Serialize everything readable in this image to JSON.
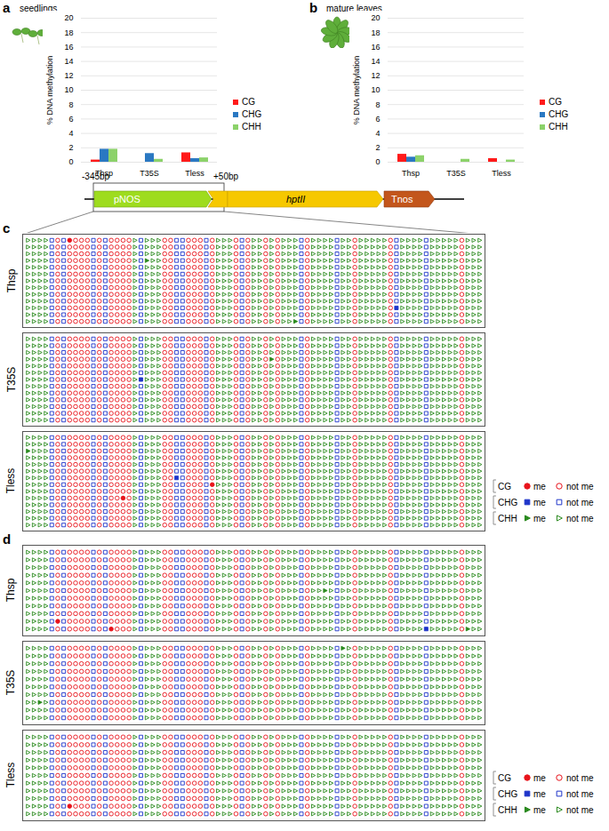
{
  "chart_data": [
    {
      "type": "bar",
      "panel": "a",
      "title": "seedlings",
      "categories": [
        "Thsp",
        "T35S",
        "Tless"
      ],
      "series": [
        {
          "name": "CG",
          "color": "#ff1a1a",
          "values": [
            0.3,
            0,
            1.3
          ]
        },
        {
          "name": "CHG",
          "color": "#2a78c2",
          "values": [
            1.8,
            1.2,
            0.5
          ]
        },
        {
          "name": "CHH",
          "color": "#8cd26a",
          "values": [
            1.8,
            0.4,
            0.6
          ]
        }
      ],
      "ylabel": "% DNA methylation",
      "ylim": [
        0,
        20
      ],
      "yticks": [
        0,
        2,
        4,
        6,
        8,
        10,
        12,
        14,
        16,
        18,
        20
      ],
      "grid": true,
      "legend": "right"
    },
    {
      "type": "bar",
      "panel": "b",
      "title": "mature leaves",
      "categories": [
        "Thsp",
        "T35S",
        "Tless"
      ],
      "series": [
        {
          "name": "CG",
          "color": "#ff1a1a",
          "values": [
            1.1,
            0,
            0.5
          ]
        },
        {
          "name": "CHG",
          "color": "#2a78c2",
          "values": [
            0.7,
            0,
            0
          ]
        },
        {
          "name": "CHH",
          "color": "#8cd26a",
          "values": [
            0.9,
            0.4,
            0.3
          ]
        }
      ],
      "ylabel": "% DNA methylation",
      "ylim": [
        0,
        20
      ],
      "yticks": [
        0,
        2,
        4,
        6,
        8,
        10,
        12,
        14,
        16,
        18,
        20
      ],
      "grid": true,
      "legend": "right"
    }
  ],
  "construct": {
    "start": "-345bp",
    "end": "+50bp",
    "elements": [
      "pNOS",
      "hptII",
      "Tnos"
    ]
  },
  "methylation": {
    "legend": {
      "contexts": [
        {
          "name": "CG",
          "color": "#e8141c",
          "marker": "circle"
        },
        {
          "name": "CHG",
          "color": "#1f35c9",
          "marker": "square"
        },
        {
          "name": "CHH",
          "color": "#2a8a1e",
          "marker": "triangle"
        }
      ],
      "methylated": "me",
      "unmethylated": "not me"
    },
    "sites": [
      "CHH",
      "CHH",
      "CHH",
      "CHH",
      "CHG",
      "CG",
      "CHG",
      "CG",
      "CG",
      "CG",
      "CG",
      "CHG",
      "CG",
      "CHG",
      "CG",
      "CG",
      "CG",
      "CG",
      "CHH",
      "CHG",
      "CHH",
      "CHH",
      "CHH",
      "CG",
      "CG",
      "CHG",
      "CHG",
      "CG",
      "CG",
      "CG",
      "CHG",
      "CG",
      "CHH",
      "CHH",
      "CHH",
      "CG",
      "CHG",
      "CG",
      "CHH",
      "CHH",
      "CG",
      "CHH",
      "CG",
      "CHH",
      "CHH",
      "CHH",
      "CHG",
      "CG",
      "CHH",
      "CHH",
      "CHH",
      "CHH",
      "CHG",
      "CHH",
      "CHH",
      "CG",
      "CHH",
      "CHH",
      "CHH",
      "CHH",
      "CHH",
      "CG",
      "CHG",
      "CHH",
      "CHH",
      "CHH",
      "CHH",
      "CHG",
      "CHH",
      "CHH",
      "CHH",
      "CHH",
      "CHH",
      "CG",
      "CHH",
      "CHH",
      "CHH"
    ],
    "panels": [
      {
        "panel": "c",
        "samples": [
          {
            "name": "Thsp",
            "reads": 13,
            "methylated": [
              [
                0,
                7
              ],
              [
                3,
                20
              ],
              [
                10,
                62
              ],
              [
                12,
                45
              ]
            ]
          },
          {
            "name": "T35S",
            "reads": 13,
            "methylated": [
              [
                6,
                19
              ],
              [
                3,
                41
              ]
            ]
          },
          {
            "name": "Tless",
            "reads": 14,
            "methylated": [
              [
                6,
                25
              ],
              [
                7,
                31
              ],
              [
                2,
                0
              ],
              [
                9,
                16
              ]
            ]
          }
        ]
      },
      {
        "panel": "d",
        "samples": [
          {
            "name": "Thsp",
            "reads": 11,
            "methylated": [
              [
                5,
                50
              ],
              [
                9,
                5
              ],
              [
                10,
                14
              ],
              [
                10,
                67
              ],
              [
                10,
                74
              ]
            ]
          },
          {
            "name": "T35S",
            "reads": 10,
            "methylated": [
              [
                0,
                53
              ],
              [
                7,
                2
              ]
            ]
          },
          {
            "name": "Tless",
            "reads": 11,
            "methylated": [
              [
                9,
                7
              ]
            ]
          }
        ]
      }
    ]
  }
}
